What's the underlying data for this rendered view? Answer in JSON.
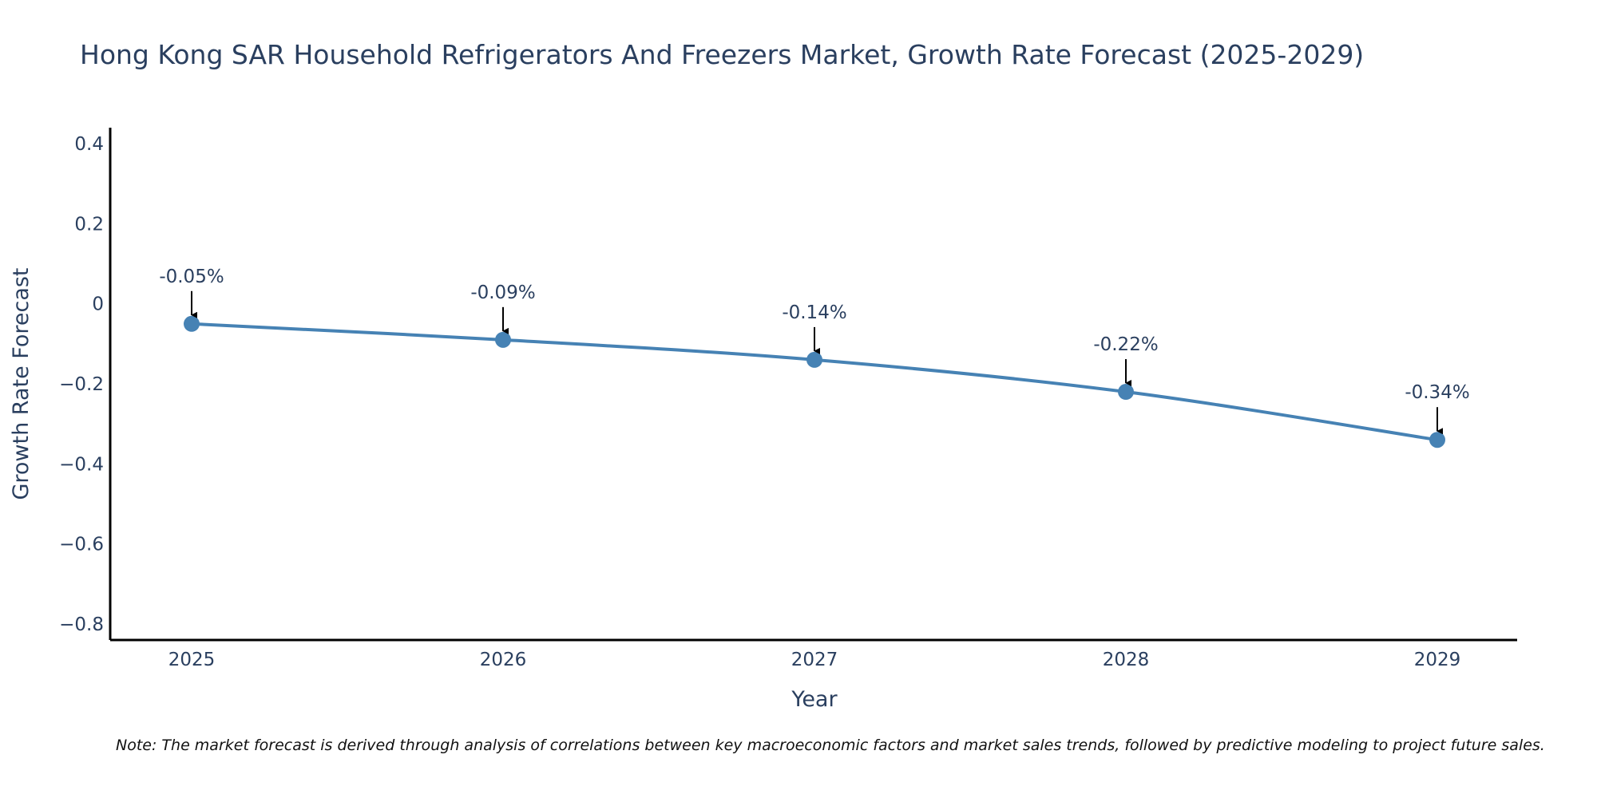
{
  "chart_data": {
    "type": "line",
    "title": "Hong Kong SAR Household Refrigerators And Freezers Market, Growth Rate Forecast (2025-2029)",
    "xlabel": "Year",
    "ylabel": "Growth Rate Forecast",
    "categories": [
      "2025",
      "2026",
      "2027",
      "2028",
      "2029"
    ],
    "values": [
      -0.05,
      -0.09,
      -0.14,
      -0.22,
      -0.34
    ],
    "labels": [
      "-0.05%",
      "-0.09%",
      "-0.14%",
      "-0.22%",
      "-0.34%"
    ],
    "ylim": [
      -0.84,
      0.44
    ],
    "yticks": [
      0.4,
      0.2,
      0,
      -0.2,
      -0.4,
      -0.6,
      -0.8
    ],
    "ytick_labels": [
      "0.4",
      "0.2",
      "0",
      "−0.2",
      "−0.4",
      "−0.6",
      "−0.8"
    ],
    "grid": false,
    "line_color": "#4682b4",
    "note": "Note: The market forecast is derived through analysis of correlations between key macroeconomic factors and market sales trends, followed by predictive modeling to project future sales."
  }
}
